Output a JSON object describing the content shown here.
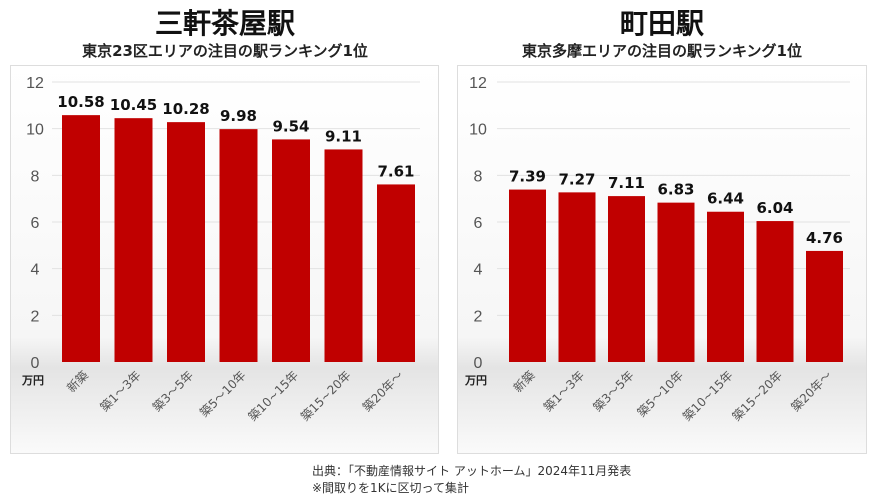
{
  "chart_data": [
    {
      "type": "bar",
      "title": "三軒茶屋駅",
      "subtitle": "東京23区エリアの注目の駅ランキング1位",
      "categories": [
        "新築",
        "築1～3年",
        "築3～5年",
        "築5～10年",
        "築10~15年",
        "築15~20年",
        "築20年～"
      ],
      "values": [
        10.58,
        10.45,
        10.28,
        9.98,
        9.54,
        9.11,
        7.61
      ],
      "value_labels": [
        "10.58",
        "10.45",
        "10.28",
        "9.98",
        "9.54",
        "9.11",
        "7.61"
      ],
      "ylabel": "万円",
      "ylim": [
        0,
        12
      ],
      "yticks": [
        0,
        2,
        4,
        6,
        8,
        10,
        12
      ],
      "bar_color": "#c00000",
      "grid": true
    },
    {
      "type": "bar",
      "title": "町田駅",
      "subtitle": "東京多摩エリアの注目の駅ランキング1位",
      "categories": [
        "新築",
        "築1～3年",
        "築3～5年",
        "築5～10年",
        "築10~15年",
        "築15~20年",
        "築20年～"
      ],
      "values": [
        7.39,
        7.27,
        7.11,
        6.83,
        6.44,
        6.04,
        4.76
      ],
      "value_labels": [
        "7.39",
        "7.27",
        "7.11",
        "6.83",
        "6.44",
        "6.04",
        "4.76"
      ],
      "ylabel": "万円",
      "ylim": [
        0,
        12
      ],
      "yticks": [
        0,
        2,
        4,
        6,
        8,
        10,
        12
      ],
      "bar_color": "#c00000",
      "grid": true
    }
  ],
  "footer": {
    "source": "出典：「不動産情報サイト アットホーム」2024年11月発表",
    "note": "※間取りを1Kに区切って集計"
  }
}
